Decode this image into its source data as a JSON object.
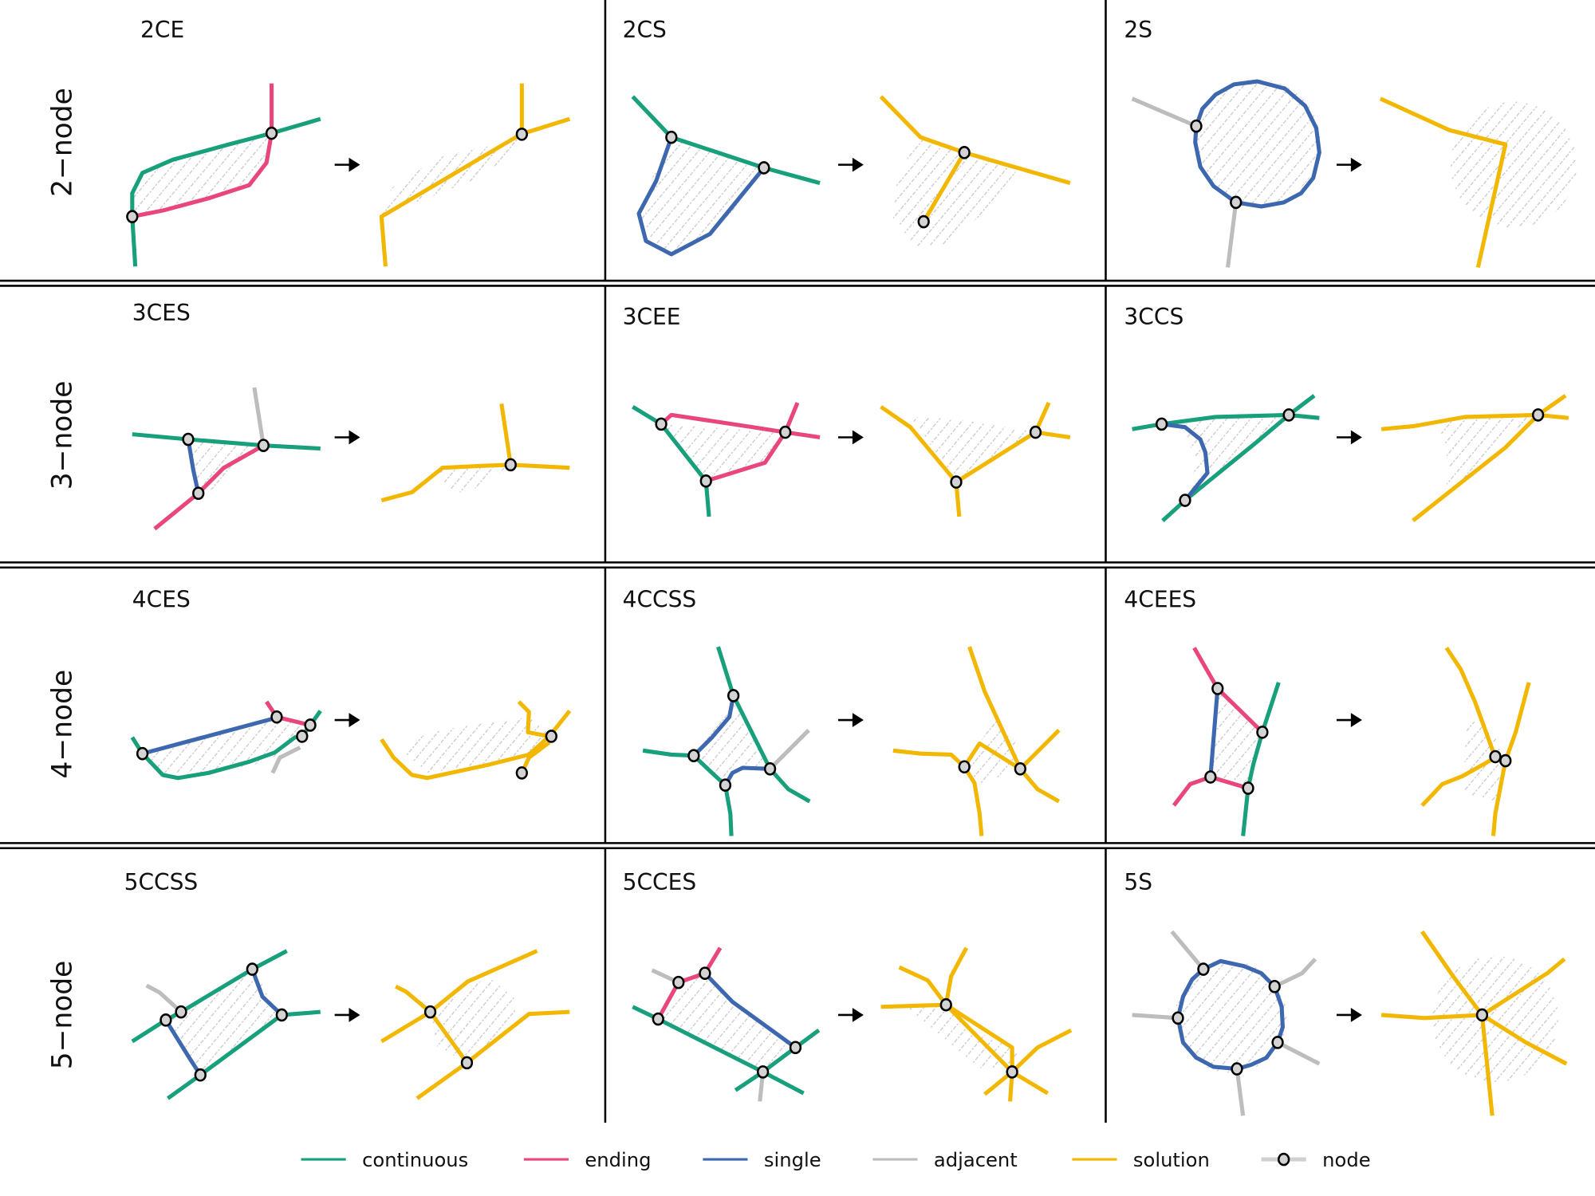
{
  "figure": {
    "row_labels": [
      "2−node",
      "3−node",
      "4−node",
      "5−node"
    ],
    "panels": [
      {
        "id": "2CE",
        "title": "2CE"
      },
      {
        "id": "2CS",
        "title": "2CS"
      },
      {
        "id": "2S",
        "title": "2S"
      },
      {
        "id": "3CES",
        "title": "3CES"
      },
      {
        "id": "3CEE",
        "title": "3CEE"
      },
      {
        "id": "3CCS",
        "title": "3CCS"
      },
      {
        "id": "4CES",
        "title": "4CES"
      },
      {
        "id": "4CCSS",
        "title": "4CCSS"
      },
      {
        "id": "4CEES",
        "title": "4CEES"
      },
      {
        "id": "5CCSS",
        "title": "5CCSS"
      },
      {
        "id": "5CCES",
        "title": "5CCES"
      },
      {
        "id": "5S",
        "title": "5S"
      }
    ],
    "arrow_icon": "right-arrow-icon"
  },
  "legend": {
    "items": [
      {
        "key": "continuous",
        "label": "continuous",
        "color": "#17a07b",
        "type": "line"
      },
      {
        "key": "ending",
        "label": "ending",
        "color": "#e8467c",
        "type": "line"
      },
      {
        "key": "single",
        "label": "single",
        "color": "#3d68b0",
        "type": "line"
      },
      {
        "key": "adjacent",
        "label": "adjacent",
        "color": "#bdbdbd",
        "type": "line"
      },
      {
        "key": "solution",
        "label": "solution",
        "color": "#f2b700",
        "type": "line"
      },
      {
        "key": "node",
        "label": "node",
        "color": "#d3d3d3",
        "type": "node"
      }
    ]
  }
}
